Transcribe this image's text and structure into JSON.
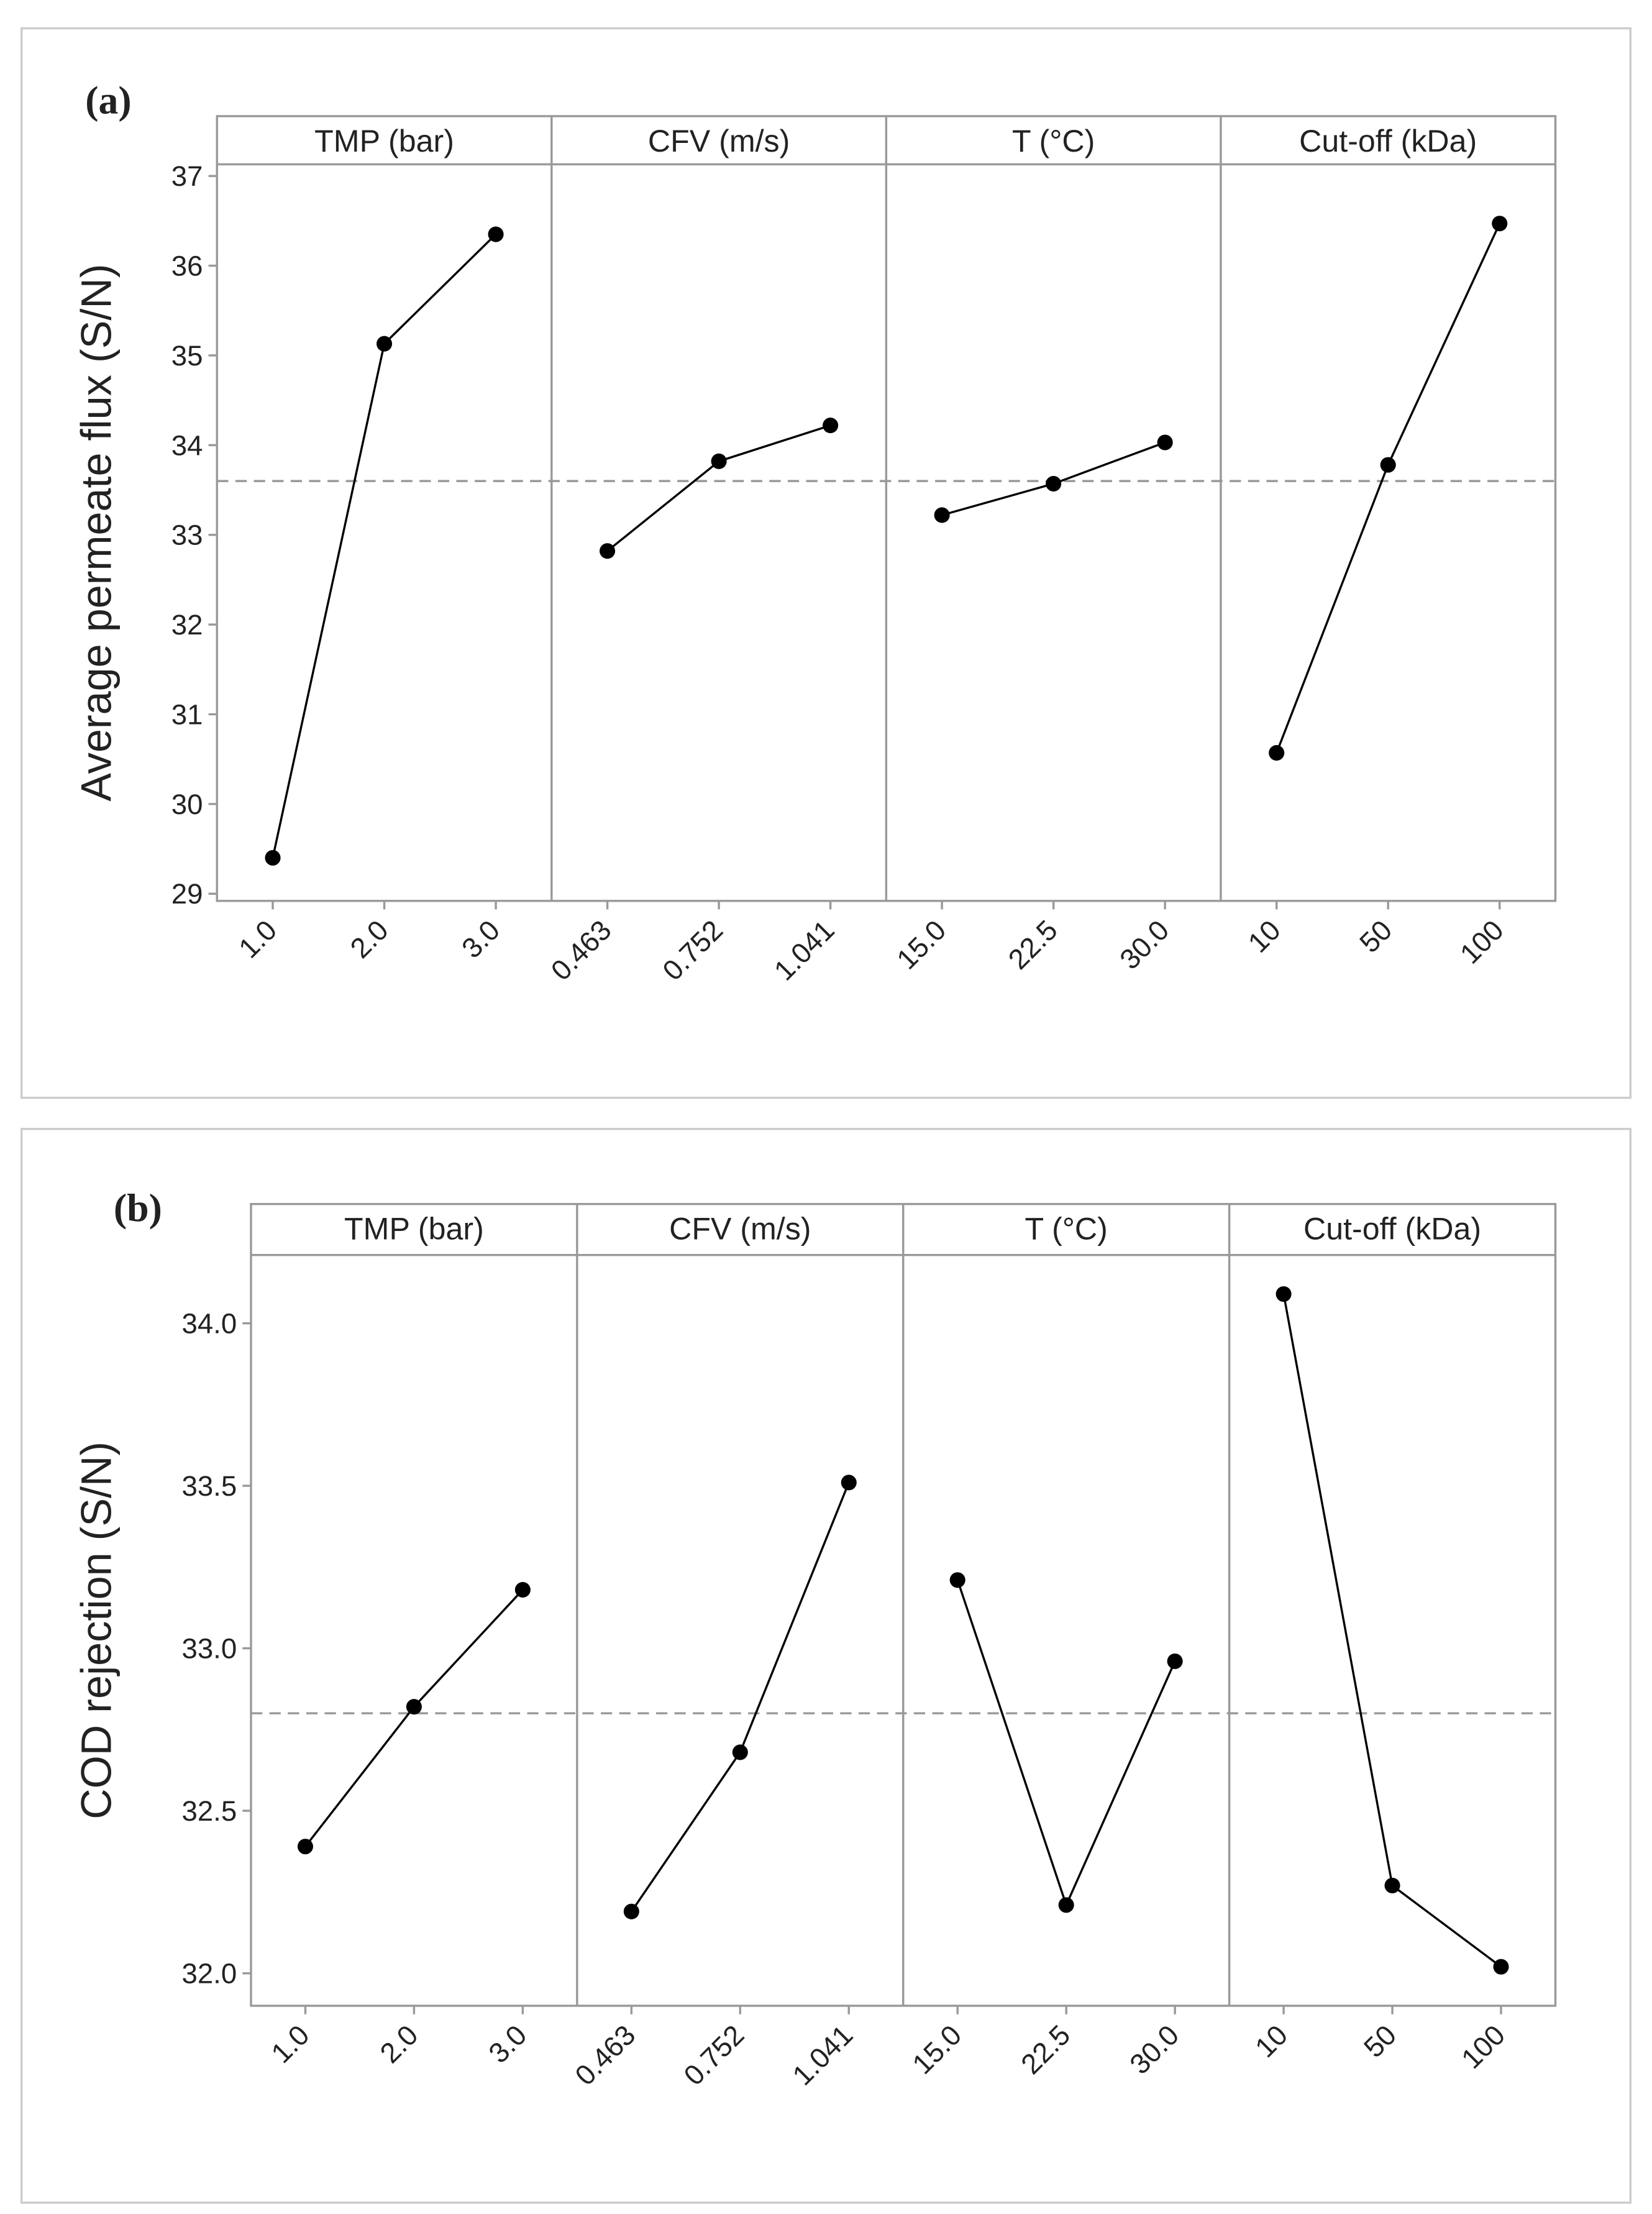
{
  "chart_data": [
    {
      "type": "line",
      "label": "(a)",
      "ylabel": "Average permeate flux (S/N)",
      "ylim": [
        28.92,
        37.13
      ],
      "yticks": [
        29,
        30,
        31,
        32,
        33,
        34,
        35,
        36,
        37
      ],
      "hline": 33.6,
      "color": "#000000",
      "panels": [
        {
          "title": "TMP (bar)",
          "categories": [
            "1.0",
            "2.0",
            "3.0"
          ],
          "values": [
            29.4,
            35.13,
            36.35
          ]
        },
        {
          "title": "CFV (m/s)",
          "categories": [
            "0.463",
            "0.752",
            "1.041"
          ],
          "values": [
            32.82,
            33.82,
            34.22
          ]
        },
        {
          "title": "T (°C)",
          "categories": [
            "15.0",
            "22.5",
            "30.0"
          ],
          "values": [
            33.22,
            33.57,
            34.03
          ]
        },
        {
          "title": "Cut-off (kDa)",
          "categories": [
            "10",
            "50",
            "100"
          ],
          "values": [
            30.57,
            33.78,
            36.47
          ]
        }
      ]
    },
    {
      "type": "line",
      "label": "(b)",
      "ylabel": "COD rejection (S/N)",
      "ylim": [
        31.9,
        34.21
      ],
      "yticks": [
        {
          "value": 32,
          "label": "32.0"
        },
        32.5,
        {
          "value": 33,
          "label": "33.0"
        },
        33.5,
        {
          "value": 34,
          "label": "34.0"
        }
      ],
      "hline": 32.8,
      "color": "#000000",
      "panels": [
        {
          "title": "TMP (bar)",
          "categories": [
            "1.0",
            "2.0",
            "3.0"
          ],
          "values": [
            32.39,
            32.82,
            33.18
          ]
        },
        {
          "title": "CFV (m/s)",
          "categories": [
            "0.463",
            "0.752",
            "1.041"
          ],
          "values": [
            32.19,
            32.68,
            33.51
          ]
        },
        {
          "title": "T (°C)",
          "categories": [
            "15.0",
            "22.5",
            "30.0"
          ],
          "values": [
            33.21,
            32.21,
            32.96
          ]
        },
        {
          "title": "Cut-off (kDa)",
          "categories": [
            "10",
            "50",
            "100"
          ],
          "values": [
            34.09,
            32.27,
            32.02
          ]
        }
      ]
    }
  ]
}
